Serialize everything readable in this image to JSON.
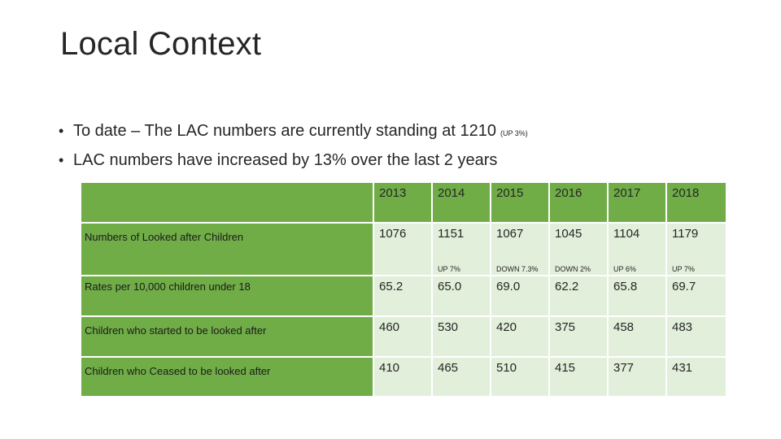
{
  "slide": {
    "title": "Local Context",
    "bullets": [
      {
        "text": "To date – The LAC numbers are currently standing at 1210",
        "note": "(UP 3%)"
      },
      {
        "text": "LAC numbers have increased by 13% over the last 2 years",
        "note": ""
      }
    ]
  },
  "table": {
    "years": [
      "2013",
      "2014",
      "2015",
      "2016",
      "2017",
      "2018"
    ],
    "rows": [
      {
        "label": "Numbers of Looked after Children",
        "values": [
          "1076",
          "1151",
          "1067",
          "1045",
          "1104",
          "1179"
        ],
        "changes": [
          "",
          "UP 7%",
          "DOWN 7.3%",
          "DOWN 2%",
          "UP 6%",
          "UP 7%"
        ]
      },
      {
        "label": "Rates per 10,000 children under 18",
        "values": [
          "65.2",
          "65.0",
          "69.0",
          "62.2",
          "65.8",
          "69.7"
        ]
      },
      {
        "label": "Children who started to be looked after",
        "values": [
          "460",
          "530",
          "420",
          "375",
          "458",
          "483"
        ]
      },
      {
        "label": "Children who Ceased to be looked after",
        "values": [
          "410",
          "465",
          "510",
          "415",
          "377",
          "431"
        ]
      }
    ]
  },
  "colors": {
    "header_green": "#70ad47",
    "cell_light": "#e2efda"
  }
}
